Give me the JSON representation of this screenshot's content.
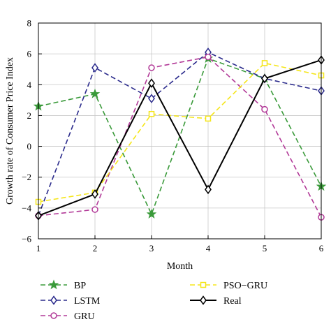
{
  "chart_data": {
    "type": "line",
    "xlabel": "Month",
    "ylabel": "Growth rate of Consumer Price Index",
    "x": [
      1,
      2,
      3,
      4,
      5,
      6
    ],
    "xticks": [
      "1",
      "2",
      "3",
      "4",
      "5",
      "6"
    ],
    "yticks": [
      "−6",
      "−4",
      "−2",
      "0",
      "2",
      "4",
      "6",
      "8"
    ],
    "xlim": [
      1,
      6
    ],
    "ylim": [
      -6,
      8
    ],
    "grid": true,
    "legend_position": "bottom",
    "series": [
      {
        "name": "BP",
        "color": "#3a9a3a",
        "dash": "dashed",
        "marker": "star",
        "values": [
          2.6,
          3.4,
          -4.4,
          5.7,
          4.4,
          -2.6
        ]
      },
      {
        "name": "LSTM",
        "color": "#2b2b8c",
        "dash": "dashed",
        "marker": "diamond",
        "values": [
          -4.5,
          5.1,
          3.1,
          6.1,
          4.4,
          3.6
        ]
      },
      {
        "name": "GRU",
        "color": "#b23a98",
        "dash": "dashed",
        "marker": "circle",
        "values": [
          -4.5,
          -4.1,
          5.1,
          5.8,
          2.4,
          -4.6
        ]
      },
      {
        "name": "PSO−GRU",
        "color": "#f5e61a",
        "dash": "dashed",
        "marker": "square",
        "values": [
          -3.6,
          -3.0,
          2.1,
          1.8,
          5.4,
          4.6
        ]
      },
      {
        "name": "Real",
        "color": "#000000",
        "dash": "solid",
        "marker": "diamond",
        "values": [
          -4.5,
          -3.1,
          4.1,
          -2.8,
          4.4,
          5.6
        ]
      }
    ]
  }
}
